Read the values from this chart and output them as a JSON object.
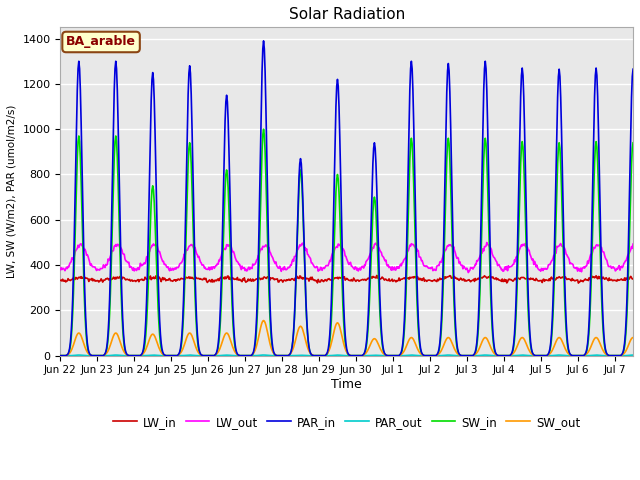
{
  "title": "Solar Radiation",
  "ylabel": "LW, SW (W/m2), PAR (umol/m2/s)",
  "xlabel": "Time",
  "annotation": "BA_arable",
  "ylim": [
    0,
    1450
  ],
  "xlim": [
    0,
    15.5
  ],
  "series": {
    "LW_in": {
      "color": "#cc0000",
      "lw": 1.2
    },
    "LW_out": {
      "color": "#ff00ff",
      "lw": 1.2
    },
    "PAR_in": {
      "color": "#0000dd",
      "lw": 1.2
    },
    "PAR_out": {
      "color": "#00cccc",
      "lw": 1.2
    },
    "SW_in": {
      "color": "#00dd00",
      "lw": 1.2
    },
    "SW_out": {
      "color": "#ff9900",
      "lw": 1.2
    }
  },
  "par_in_peaks": [
    1300,
    1300,
    1250,
    1280,
    1150,
    1390,
    870,
    1220,
    940,
    1300,
    1290,
    1300,
    1270,
    1265,
    1270,
    1265
  ],
  "sw_in_peaks": [
    970,
    970,
    750,
    940,
    820,
    1000,
    820,
    800,
    700,
    960,
    960,
    960,
    945,
    940,
    945,
    940
  ],
  "sw_out_peaks": [
    100,
    100,
    95,
    100,
    100,
    155,
    130,
    145,
    75,
    80,
    80,
    80,
    80,
    80,
    80,
    80
  ],
  "lw_in_base": 330,
  "lw_out_base": 380,
  "lw_out_amp": 110,
  "n_days": 15.5,
  "xtick_labels": [
    "Jun 22",
    "Jun 23",
    "Jun 24",
    "Jun 25",
    "Jun 26",
    "Jun 27",
    "Jun 28",
    "Jun 29",
    "Jun 30",
    "Jul 1",
    "Jul 2",
    "Jul 3",
    "Jul 4",
    "Jul 5",
    "Jul 6",
    "Jul 7"
  ],
  "xtick_positions": [
    0,
    1,
    2,
    3,
    4,
    5,
    6,
    7,
    8,
    9,
    10,
    11,
    12,
    13,
    14,
    15
  ],
  "ytick_vals": [
    0,
    200,
    400,
    600,
    800,
    1000,
    1200,
    1400
  ],
  "figsize": [
    6.4,
    4.8
  ],
  "dpi": 100
}
